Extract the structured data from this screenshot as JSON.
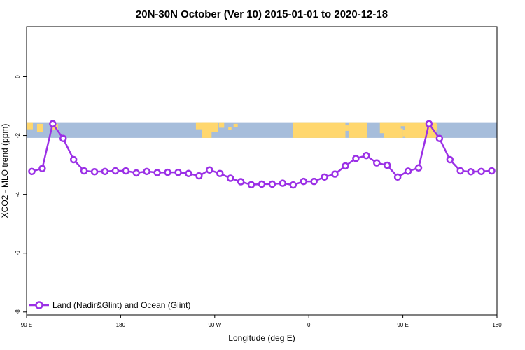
{
  "chart_data": {
    "type": "line",
    "title": "20N-30N October (Ver 10)   2015-01-01 to 2020-12-18",
    "xlabel": "Longitude (deg E)",
    "ylabel": "XCO2 - MLO trend (ppm)",
    "xlim": [
      90,
      540
    ],
    "ylim": [
      -8.1,
      1.7
    ],
    "x_ticks": [
      {
        "value": 90,
        "label": "90 E"
      },
      {
        "value": 180,
        "label": "180"
      },
      {
        "value": 270,
        "label": "90 W"
      },
      {
        "value": 360,
        "label": "0"
      },
      {
        "value": 450,
        "label": "90 E"
      },
      {
        "value": 540,
        "label": "180"
      }
    ],
    "y_ticks": [
      {
        "value": 0,
        "label": "0"
      },
      {
        "value": -2,
        "label": "-2"
      },
      {
        "value": -4,
        "label": "-4"
      },
      {
        "value": -6,
        "label": "-6"
      },
      {
        "value": -8,
        "label": "-8"
      }
    ],
    "grid": false,
    "legend_position": "bottom-left",
    "map_band": {
      "y_top": -1.55,
      "y_bottom": -2.08,
      "ocean_color": "#a6bddb",
      "land_color": "#ffd76e"
    },
    "series": [
      {
        "name": "Land (Nadir&Glint) and Ocean (Glint)",
        "color": "#9b30e6",
        "x": [
          95,
          105,
          115,
          125,
          135,
          145,
          155,
          165,
          175,
          185,
          195,
          205,
          215,
          225,
          235,
          245,
          255,
          265,
          275,
          285,
          295,
          305,
          315,
          325,
          335,
          345,
          355,
          365,
          375,
          385,
          395,
          405,
          415,
          425,
          435,
          445,
          455,
          465,
          475,
          485,
          495,
          505,
          515,
          525,
          535
        ],
        "y": [
          -3.22,
          -3.12,
          -1.6,
          -2.1,
          -2.82,
          -3.2,
          -3.23,
          -3.22,
          -3.2,
          -3.2,
          -3.27,
          -3.22,
          -3.26,
          -3.25,
          -3.25,
          -3.29,
          -3.37,
          -3.17,
          -3.29,
          -3.45,
          -3.57,
          -3.67,
          -3.65,
          -3.65,
          -3.62,
          -3.68,
          -3.56,
          -3.56,
          -3.41,
          -3.31,
          -3.03,
          -2.78,
          -2.68,
          -2.93,
          -3.01,
          -3.41,
          -3.21,
          -3.1,
          -1.6,
          -2.1,
          -2.82,
          -3.2,
          -3.23,
          -3.22,
          -3.2
        ]
      }
    ]
  }
}
